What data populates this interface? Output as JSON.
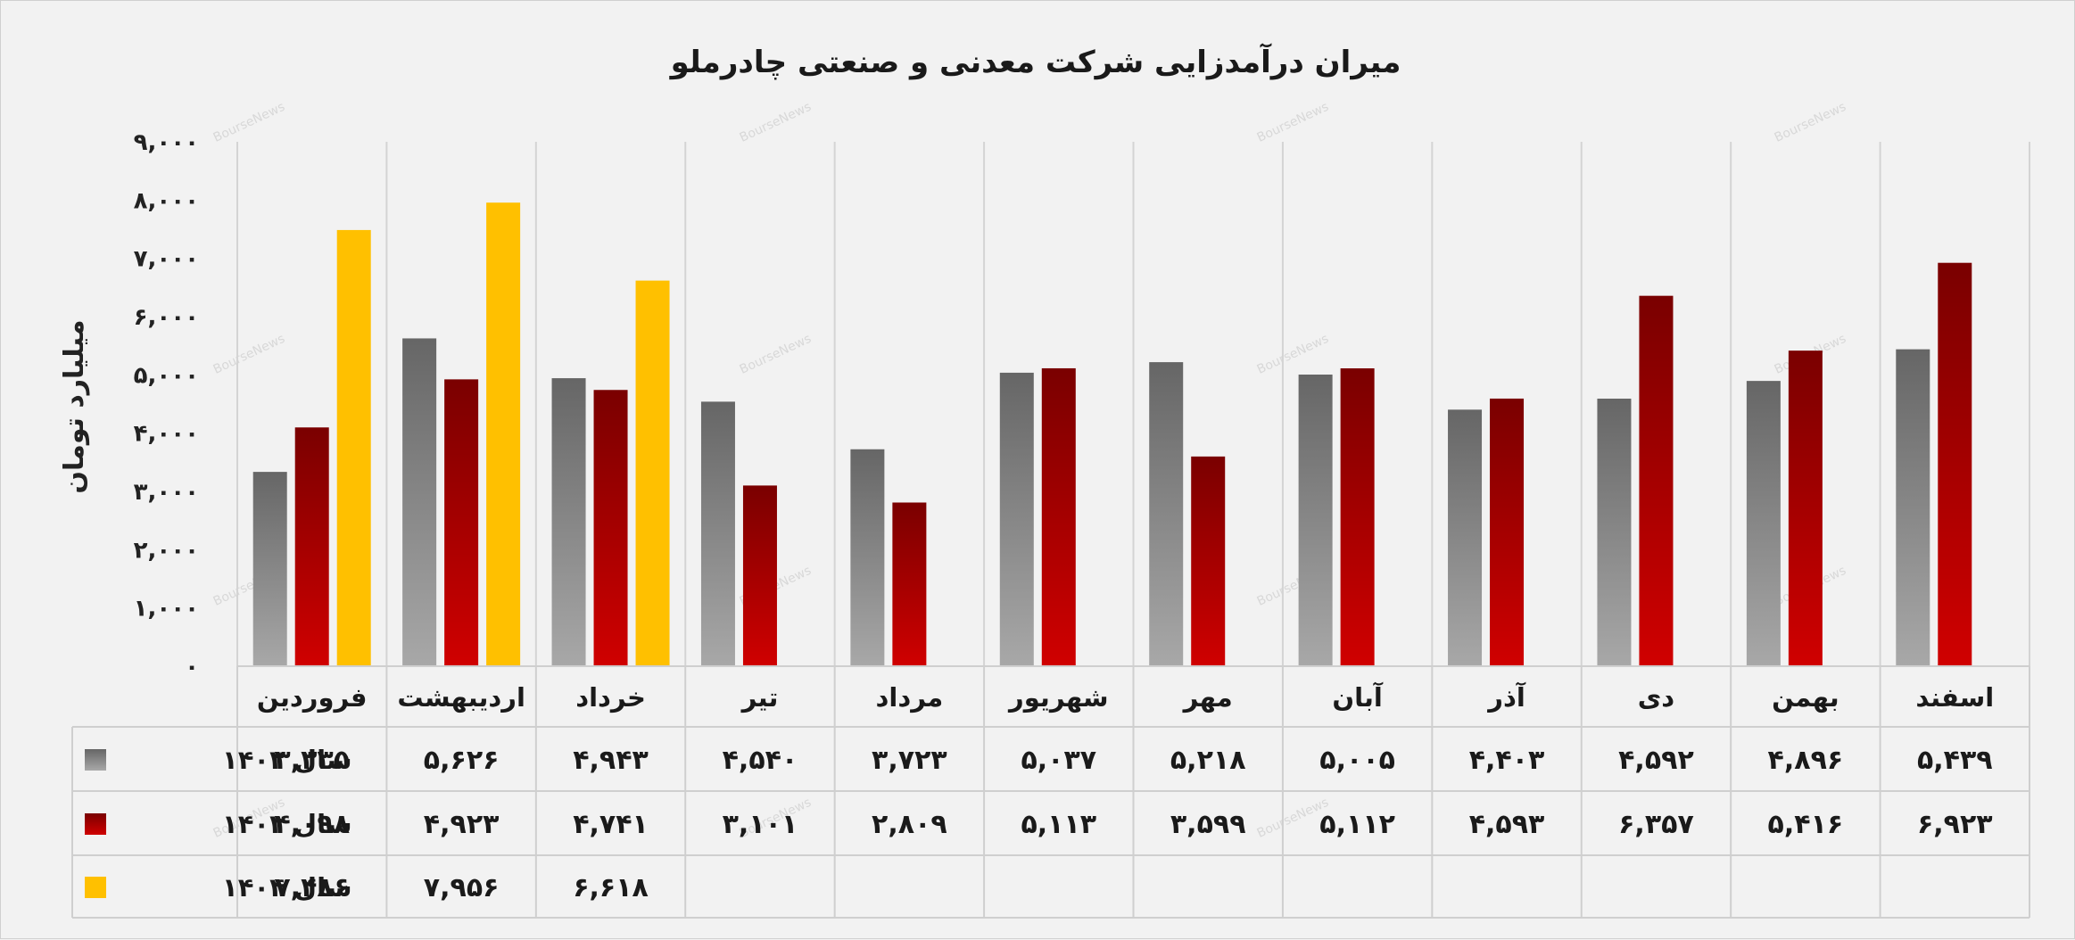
{
  "chart_data": {
    "type": "bar",
    "title": "میران درآمدزایی شرکت معدنی و صنعتی چادرملو",
    "ylabel": "میلیارد تومان",
    "ylim": [
      0,
      9000
    ],
    "yticks": [
      {
        "value": 0,
        "label": "۰"
      },
      {
        "value": 1000,
        "label": "۱,۰۰۰"
      },
      {
        "value": 2000,
        "label": "۲,۰۰۰"
      },
      {
        "value": 3000,
        "label": "۳,۰۰۰"
      },
      {
        "value": 4000,
        "label": "۴,۰۰۰"
      },
      {
        "value": 5000,
        "label": "۵,۰۰۰"
      },
      {
        "value": 6000,
        "label": "۶,۰۰۰"
      },
      {
        "value": 7000,
        "label": "۷,۰۰۰"
      },
      {
        "value": 8000,
        "label": "۸,۰۰۰"
      },
      {
        "value": 9000,
        "label": "۹,۰۰۰"
      }
    ],
    "categories": [
      "فروردین",
      "اردیبهشت",
      "خرداد",
      "تیر",
      "مرداد",
      "شهریور",
      "مهر",
      "آبان",
      "آذر",
      "دی",
      "بهمن",
      "اسفند"
    ],
    "series": [
      {
        "name": "سال ۱۴۰۲",
        "color": "#7f7f7f",
        "values": [
          3335,
          5626,
          4943,
          4540,
          3723,
          5037,
          5218,
          5005,
          4403,
          4592,
          4896,
          5439
        ],
        "labels": [
          "۳,۳۳۵",
          "۵,۶۲۶",
          "۴,۹۴۳",
          "۴,۵۴۰",
          "۳,۷۲۳",
          "۵,۰۳۷",
          "۵,۲۱۸",
          "۵,۰۰۵",
          "۴,۴۰۳",
          "۴,۵۹۲",
          "۴,۸۹۶",
          "۵,۴۳۹"
        ]
      },
      {
        "name": "سال ۱۴۰۳",
        "color": "#a50000",
        "values": [
          4098,
          4923,
          4741,
          3101,
          2809,
          5113,
          3599,
          5112,
          4593,
          6357,
          5416,
          6923
        ],
        "labels": [
          "۴,۰۹۸",
          "۴,۹۲۳",
          "۴,۷۴۱",
          "۳,۱۰۱",
          "۲,۸۰۹",
          "۵,۱۱۳",
          "۳,۵۹۹",
          "۵,۱۱۲",
          "۴,۵۹۳",
          "۶,۳۵۷",
          "۵,۴۱۶",
          "۶,۹۲۳"
        ]
      },
      {
        "name": "سال ۱۴۰۴",
        "color": "#ffc000",
        "values": [
          7486,
          7956,
          6618,
          null,
          null,
          null,
          null,
          null,
          null,
          null,
          null,
          null
        ],
        "labels": [
          "۷,۴۸۶",
          "۷,۹۵۶",
          "۶,۶۱۸",
          "",
          "",
          "",
          "",
          "",
          "",
          "",
          "",
          ""
        ]
      }
    ],
    "grid": true,
    "legend": "data-table-left",
    "watermark": "BourseNews"
  }
}
